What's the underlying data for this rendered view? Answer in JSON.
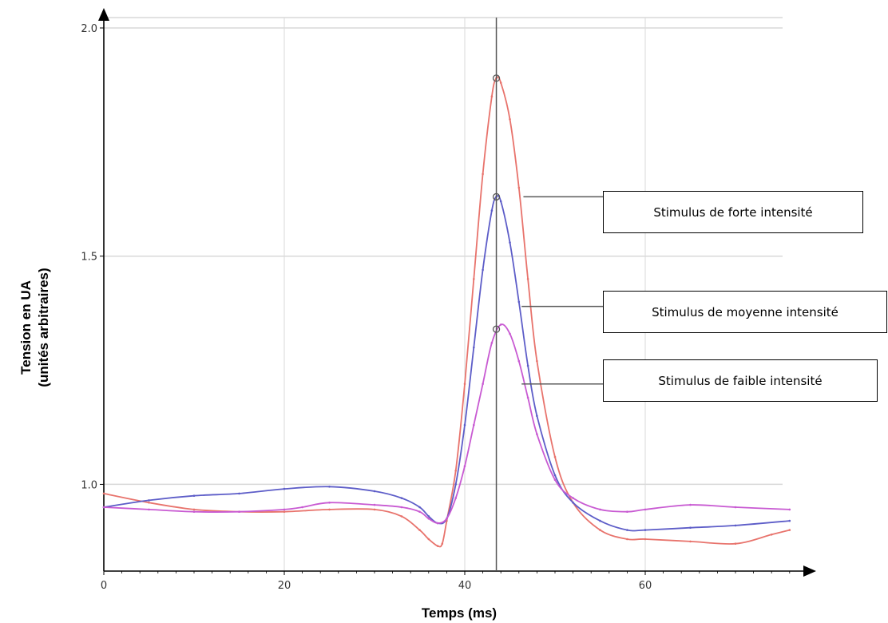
{
  "chart_data": {
    "type": "line",
    "xlabel": "Temps (ms)",
    "ylabel": "Tension en UA",
    "ylabel_sub": "(unités arbitraires)",
    "xlim": [
      0,
      76
    ],
    "ylim": [
      0.81,
      2.0
    ],
    "x_ticks": [
      0,
      20,
      40,
      60
    ],
    "x_tick_labels": [
      "0",
      "20",
      "40",
      "60"
    ],
    "y_ticks": [
      1.0,
      1.5,
      2.0
    ],
    "y_tick_labels": [
      "1.0",
      "1.5",
      "2.0"
    ],
    "grid": true,
    "cursor_x": 43.5,
    "series": [
      {
        "name": "Stimulus de forte intensité",
        "color": "#e8736c",
        "x": [
          0,
          5,
          10,
          15,
          20,
          25,
          30,
          33,
          35,
          36,
          37,
          37.5,
          38,
          39,
          40,
          41,
          42,
          43,
          43.5,
          44,
          45,
          46,
          47,
          48,
          50,
          52,
          55,
          58,
          60,
          65,
          70,
          74,
          76
        ],
        "y": [
          0.98,
          0.96,
          0.945,
          0.94,
          0.94,
          0.945,
          0.945,
          0.93,
          0.9,
          0.88,
          0.865,
          0.87,
          0.92,
          1.03,
          1.22,
          1.45,
          1.68,
          1.85,
          1.89,
          1.88,
          1.8,
          1.65,
          1.45,
          1.27,
          1.06,
          0.96,
          0.9,
          0.88,
          0.88,
          0.875,
          0.87,
          0.89,
          0.9
        ]
      },
      {
        "name": "Stimulus de moyenne intensité",
        "color": "#5d5dc8",
        "x": [
          0,
          5,
          10,
          15,
          20,
          25,
          30,
          33,
          35,
          36,
          37,
          38,
          39,
          40,
          41,
          42,
          43,
          43.5,
          44,
          45,
          46,
          47,
          48,
          50,
          52,
          55,
          58,
          60,
          65,
          70,
          76
        ],
        "y": [
          0.95,
          0.965,
          0.975,
          0.98,
          0.99,
          0.995,
          0.985,
          0.97,
          0.95,
          0.93,
          0.915,
          0.925,
          1.0,
          1.13,
          1.3,
          1.47,
          1.6,
          1.63,
          1.62,
          1.53,
          1.4,
          1.26,
          1.15,
          1.02,
          0.96,
          0.92,
          0.9,
          0.9,
          0.905,
          0.91,
          0.92
        ]
      },
      {
        "name": "Stimulus de faible intensité",
        "color": "#c85ad2",
        "x": [
          0,
          5,
          10,
          15,
          20,
          22,
          25,
          30,
          33,
          35,
          36,
          37,
          38,
          39,
          40,
          41,
          42,
          43,
          44,
          45,
          46,
          47,
          48,
          50,
          52,
          55,
          58,
          60,
          65,
          70,
          76
        ],
        "y": [
          0.95,
          0.945,
          0.94,
          0.94,
          0.945,
          0.95,
          0.96,
          0.955,
          0.95,
          0.94,
          0.925,
          0.915,
          0.925,
          0.97,
          1.04,
          1.13,
          1.22,
          1.31,
          1.35,
          1.33,
          1.27,
          1.19,
          1.11,
          1.01,
          0.97,
          0.945,
          0.94,
          0.945,
          0.955,
          0.95,
          0.945
        ]
      }
    ],
    "markers": [
      {
        "x": 43.5,
        "y": 1.89
      },
      {
        "x": 43.5,
        "y": 1.63
      },
      {
        "x": 43.5,
        "y": 1.34
      }
    ],
    "annotations": [
      {
        "text": "Stimulus de forte intensité",
        "series": 0,
        "x": 46.5,
        "y": 1.63
      },
      {
        "text": "Stimulus de moyenne intensité",
        "series": 1,
        "x": 46.3,
        "y": 1.39
      },
      {
        "text": "Stimulus de faible intensité",
        "series": 2,
        "x": 46.3,
        "y": 1.22
      }
    ]
  }
}
